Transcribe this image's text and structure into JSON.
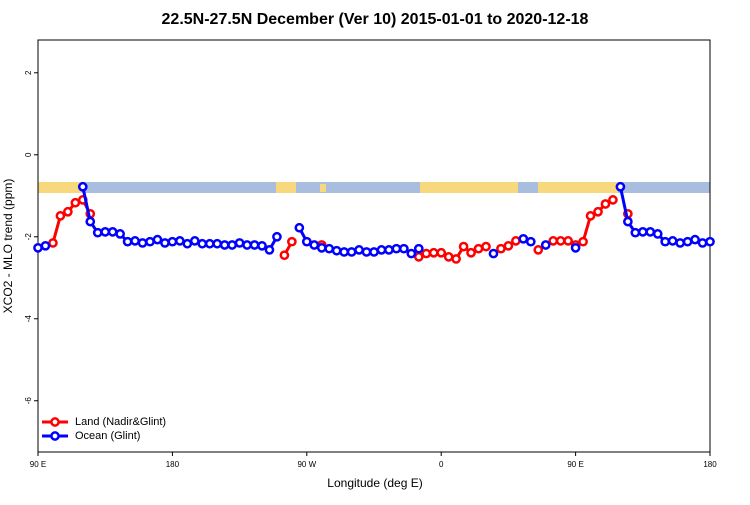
{
  "chart_data": {
    "type": "line",
    "title": "22.5N-27.5N December (Ver 10)   2015-01-01 to 2020-12-18",
    "x_label": "Longitude (deg E)",
    "y_label": "XCO2 - MLO trend (ppm)",
    "x": [
      90,
      95,
      100,
      105,
      110,
      115,
      120,
      125,
      130,
      135,
      140,
      145,
      150,
      155,
      160,
      165,
      170,
      175,
      180,
      185,
      190,
      195,
      200,
      205,
      210,
      215,
      220,
      225,
      230,
      235,
      240,
      245,
      250,
      255,
      260,
      265,
      270,
      275,
      280,
      285,
      290,
      295,
      300,
      305,
      310,
      315,
      320,
      325,
      330,
      335,
      340,
      345,
      350,
      355,
      360,
      365,
      370,
      375,
      380,
      385,
      390,
      395,
      400,
      405,
      410,
      415,
      420,
      425,
      430,
      435,
      440,
      445,
      450,
      455,
      460,
      465,
      470,
      475,
      480,
      485,
      490,
      495,
      500,
      505,
      510,
      515,
      520,
      525,
      530,
      535,
      540
    ],
    "series": [
      {
        "name": "Land (Nadir&Glint)",
        "color": "#ff0000",
        "values": [
          null,
          null,
          -2.15,
          -1.49,
          -1.39,
          -1.17,
          -1.1,
          -1.44,
          null,
          null,
          null,
          null,
          null,
          null,
          null,
          null,
          null,
          null,
          null,
          null,
          null,
          null,
          null,
          null,
          null,
          null,
          null,
          null,
          null,
          null,
          null,
          null,
          null,
          -2.45,
          -2.12,
          null,
          null,
          null,
          -2.2,
          null,
          null,
          null,
          null,
          null,
          null,
          null,
          null,
          null,
          null,
          null,
          null,
          -2.49,
          -2.41,
          -2.39,
          -2.39,
          -2.49,
          -2.54,
          -2.24,
          -2.39,
          -2.29,
          -2.24,
          null,
          -2.29,
          -2.22,
          -2.1,
          null,
          null,
          -2.32,
          null,
          -2.1,
          -2.1,
          -2.1,
          -2.2,
          -2.12,
          -1.49,
          -1.39,
          -1.2,
          -1.1,
          null,
          -1.44,
          null,
          null,
          null,
          null,
          null,
          null,
          null,
          null,
          null,
          null,
          null
        ]
      },
      {
        "name": "Ocean (Glint)",
        "color": "#0000ff",
        "values": [
          -2.27,
          -2.22,
          null,
          null,
          null,
          null,
          -0.78,
          -1.63,
          -1.9,
          -1.88,
          -1.88,
          -1.93,
          -2.12,
          -2.1,
          -2.15,
          -2.12,
          -2.07,
          -2.15,
          -2.12,
          -2.1,
          -2.17,
          -2.1,
          -2.17,
          -2.17,
          -2.17,
          -2.2,
          -2.2,
          -2.15,
          -2.2,
          -2.2,
          -2.22,
          -2.32,
          -2.0,
          null,
          null,
          -1.78,
          -2.12,
          -2.2,
          -2.27,
          -2.29,
          -2.34,
          -2.37,
          -2.37,
          -2.32,
          -2.37,
          -2.37,
          -2.32,
          -2.32,
          -2.29,
          -2.29,
          -2.41,
          -2.29,
          null,
          null,
          null,
          null,
          null,
          null,
          null,
          null,
          null,
          -2.41,
          null,
          null,
          null,
          -2.05,
          -2.12,
          null,
          -2.2,
          null,
          null,
          null,
          -2.27,
          null,
          null,
          null,
          null,
          null,
          -0.78,
          -1.63,
          -1.9,
          -1.88,
          -1.88,
          -1.93,
          -2.12,
          -2.1,
          -2.15,
          -2.12,
          -2.07,
          -2.15,
          -2.12
        ]
      }
    ],
    "xlim": [
      90,
      540
    ],
    "xticks": [
      {
        "value": 90,
        "label": "90 E"
      },
      180,
      {
        "value": 270,
        "label": "90 W"
      },
      {
        "value": 360,
        "label": "0"
      },
      {
        "value": 450,
        "label": "90 E"
      },
      180
    ],
    "ylim": [
      -7.25,
      2.8
    ],
    "yticks": [
      2,
      0,
      -2,
      -4,
      -6
    ],
    "legend": "bottom-left"
  }
}
